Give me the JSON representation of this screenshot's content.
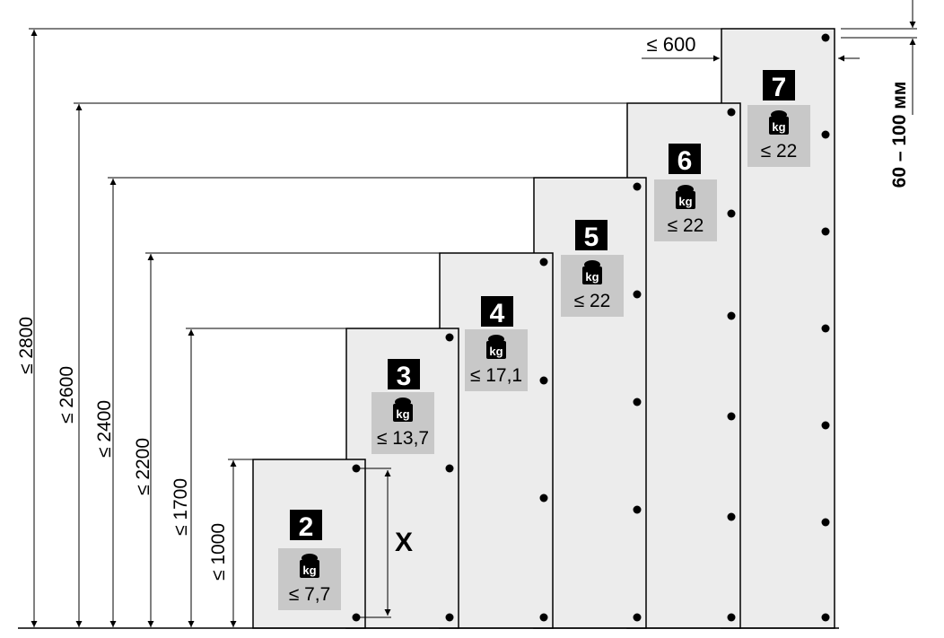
{
  "panels": [
    {
      "number": "2",
      "weight": "≤ 7,7",
      "height_label": "≤ 1000"
    },
    {
      "number": "3",
      "weight": "≤ 13,7",
      "height_label": "≤ 1700"
    },
    {
      "number": "4",
      "weight": "≤ 17,1",
      "height_label": "≤ 2200"
    },
    {
      "number": "5",
      "weight": "≤ 22",
      "height_label": "≤ 2400"
    },
    {
      "number": "6",
      "weight": "≤ 22",
      "height_label": "≤ 2600"
    },
    {
      "number": "7",
      "weight": "≤ 22",
      "height_label": "≤ 2800"
    }
  ],
  "weight_icon": "kg-weight-icon",
  "weight_icon_text": "kg",
  "width_label": "≤ 600",
  "spacing_label": "X",
  "gap_label": "60 – 100 мм",
  "colors": {
    "panel": "#ececec",
    "label_box": "#c8c8c8",
    "ink": "#000000"
  }
}
